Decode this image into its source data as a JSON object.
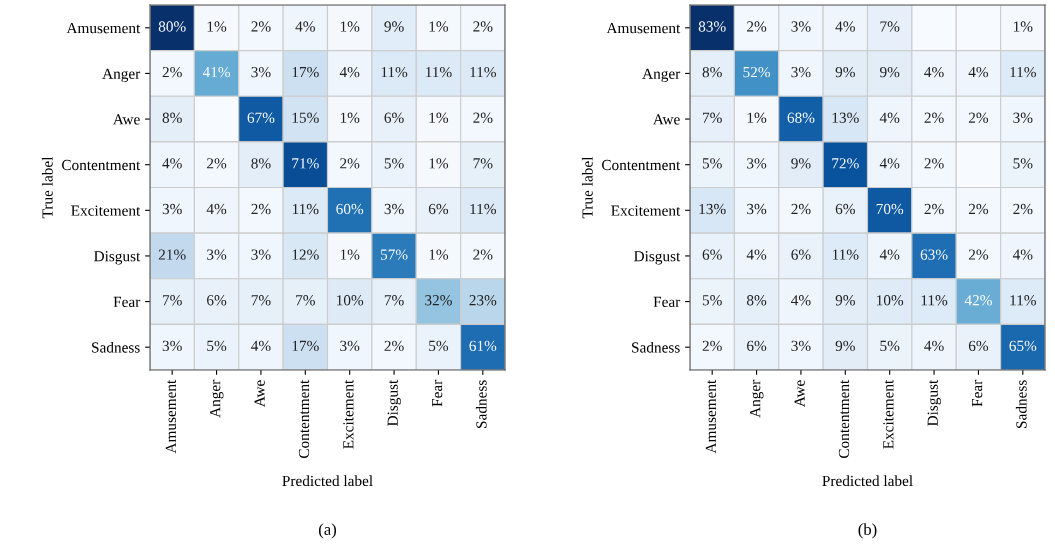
{
  "chart_data": [
    {
      "type": "heatmap",
      "xlabel": "Predicted label",
      "ylabel": "True label",
      "annotations": [
        "(a)"
      ],
      "categories": [
        "Amusement",
        "Anger",
        "Awe",
        "Contentment",
        "Excitement",
        "Disgust",
        "Fear",
        "Sadness"
      ],
      "y_categories": [
        "Amusement",
        "Anger",
        "Awe",
        "Contentment",
        "Excitement",
        "Disgust",
        "Fear",
        "Sadness"
      ],
      "cells": [
        [
          80,
          1,
          2,
          4,
          1,
          9,
          1,
          2
        ],
        [
          2,
          41,
          3,
          17,
          4,
          11,
          11,
          11
        ],
        [
          8,
          null,
          67,
          15,
          1,
          6,
          1,
          2
        ],
        [
          4,
          2,
          8,
          71,
          2,
          5,
          1,
          7
        ],
        [
          3,
          4,
          2,
          11,
          60,
          3,
          6,
          11
        ],
        [
          21,
          3,
          3,
          12,
          1,
          57,
          1,
          2
        ],
        [
          7,
          6,
          7,
          7,
          10,
          7,
          32,
          23
        ],
        [
          3,
          5,
          4,
          17,
          3,
          2,
          5,
          61
        ]
      ],
      "cell_labels": [
        [
          "80%",
          "1%",
          "2%",
          "4%",
          "1%",
          "9%",
          "1%",
          "2%"
        ],
        [
          "2%",
          "41%",
          "3%",
          "17%",
          "4%",
          "11%",
          "11%",
          "11%"
        ],
        [
          "8%",
          null,
          "67%",
          "15%",
          "1%",
          "6%",
          "1%",
          "2%"
        ],
        [
          "4%",
          "2%",
          "8%",
          "71%",
          "2%",
          "5%",
          "1%",
          "7%"
        ],
        [
          "3%",
          "4%",
          "2%",
          "11%",
          "60%",
          "3%",
          "6%",
          "11%"
        ],
        [
          "21%",
          "3%",
          "3%",
          "12%",
          "1%",
          "57%",
          "1%",
          "2%"
        ],
        [
          "7%",
          "6%",
          "7%",
          "7%",
          "10%",
          "7%",
          "32%",
          "23%"
        ],
        [
          "3%",
          "5%",
          "4%",
          "17%",
          "3%",
          "2%",
          "5%",
          "61%"
        ]
      ]
    },
    {
      "type": "heatmap",
      "xlabel": "Predicted label",
      "ylabel": "True label",
      "annotations": [
        "(b)"
      ],
      "categories": [
        "Amusement",
        "Anger",
        "Awe",
        "Contentment",
        "Excitement",
        "Disgust",
        "Fear",
        "Sadness"
      ],
      "y_categories": [
        "Amusement",
        "Anger",
        "Awe",
        "Contentment",
        "Excitement",
        "Disgust",
        "Fear",
        "Sadness"
      ],
      "cells": [
        [
          83,
          2,
          3,
          4,
          7,
          null,
          null,
          1
        ],
        [
          8,
          52,
          3,
          9,
          9,
          4,
          4,
          11
        ],
        [
          7,
          1,
          68,
          13,
          4,
          2,
          2,
          3
        ],
        [
          5,
          3,
          9,
          72,
          4,
          2,
          null,
          5
        ],
        [
          13,
          3,
          2,
          6,
          70,
          2,
          2,
          2
        ],
        [
          6,
          4,
          6,
          11,
          4,
          63,
          2,
          4
        ],
        [
          5,
          8,
          4,
          9,
          10,
          11,
          42,
          11
        ],
        [
          2,
          6,
          3,
          9,
          5,
          4,
          6,
          65
        ]
      ],
      "cell_labels": [
        [
          "83%",
          "2%",
          "3%",
          "4%",
          "7%",
          null,
          null,
          "1%"
        ],
        [
          "8%",
          "52%",
          "3%",
          "9%",
          "9%",
          "4%",
          "4%",
          "11%"
        ],
        [
          "7%",
          "1%",
          "68%",
          "13%",
          "4%",
          "2%",
          "2%",
          "3%"
        ],
        [
          "5%",
          "3%",
          "9%",
          "72%",
          "4%",
          "2%",
          null,
          "5%"
        ],
        [
          "13%",
          "3%",
          "2%",
          "6%",
          "70%",
          "2%",
          "2%",
          "2%"
        ],
        [
          "6%",
          "4%",
          "6%",
          "11%",
          "4%",
          "63%",
          "2%",
          "4%"
        ],
        [
          "5%",
          "8%",
          "4%",
          "9%",
          "10%",
          "11%",
          "42%",
          "11%"
        ],
        [
          "2%",
          "6%",
          "3%",
          "9%",
          "5%",
          "4%",
          "6%",
          "65%"
        ]
      ]
    }
  ]
}
